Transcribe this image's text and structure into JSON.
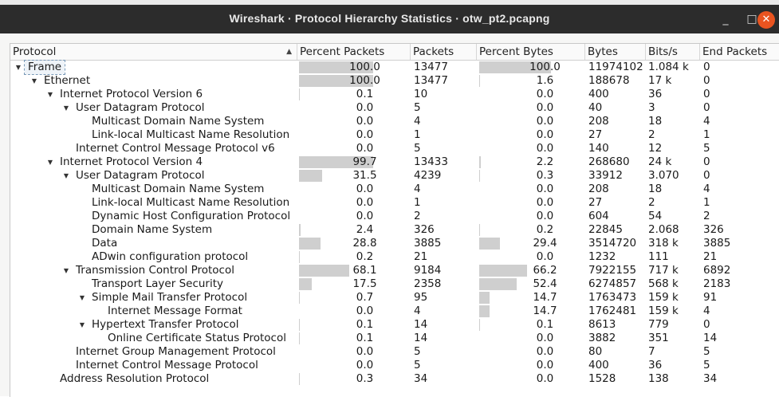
{
  "window": {
    "title": "Wireshark · Protocol Hierarchy Statistics · otw_pt2.pcapng",
    "minimize_glyph": "_",
    "maximize_glyph": "□",
    "close_glyph": "✕"
  },
  "columns": {
    "protocol": "Protocol",
    "percent_packets": "Percent Packets",
    "packets": "Packets",
    "percent_bytes": "Percent Bytes",
    "bytes": "Bytes",
    "bits_s": "Bits/s",
    "end_packets": "End Packets"
  },
  "rows": [
    {
      "name": "Frame",
      "depth": 0,
      "expander": "open",
      "pct_packets": "100.0",
      "pp_fill": 1.0,
      "packets": "13477",
      "pct_bytes": "100.0",
      "pb_fill": 1.0,
      "bytes": "11974102",
      "bits": "1.084 k",
      "end": "0",
      "selected": true
    },
    {
      "name": "Ethernet",
      "depth": 1,
      "expander": "open",
      "pct_packets": "100.0",
      "pp_fill": 1.0,
      "packets": "13477",
      "pct_bytes": "1.6",
      "pb_fill": 0.016,
      "bytes": "188678",
      "bits": "17 k",
      "end": "0"
    },
    {
      "name": "Internet Protocol Version 6",
      "depth": 2,
      "expander": "open",
      "pct_packets": "0.1",
      "pp_fill": 0.001,
      "packets": "10",
      "pct_bytes": "0.0",
      "pb_fill": 0,
      "bytes": "400",
      "bits": "36",
      "end": "0"
    },
    {
      "name": "User Datagram Protocol",
      "depth": 3,
      "expander": "open",
      "pct_packets": "0.0",
      "pp_fill": 0,
      "packets": "5",
      "pct_bytes": "0.0",
      "pb_fill": 0,
      "bytes": "40",
      "bits": "3",
      "end": "0"
    },
    {
      "name": "Multicast Domain Name System",
      "depth": 4,
      "expander": "none",
      "pct_packets": "0.0",
      "pp_fill": 0,
      "packets": "4",
      "pct_bytes": "0.0",
      "pb_fill": 0,
      "bytes": "208",
      "bits": "18",
      "end": "4"
    },
    {
      "name": "Link-local Multicast Name Resolution",
      "depth": 4,
      "expander": "none",
      "pct_packets": "0.0",
      "pp_fill": 0,
      "packets": "1",
      "pct_bytes": "0.0",
      "pb_fill": 0,
      "bytes": "27",
      "bits": "2",
      "end": "1"
    },
    {
      "name": "Internet Control Message Protocol v6",
      "depth": 3,
      "expander": "none",
      "pct_packets": "0.0",
      "pp_fill": 0,
      "packets": "5",
      "pct_bytes": "0.0",
      "pb_fill": 0,
      "bytes": "140",
      "bits": "12",
      "end": "5"
    },
    {
      "name": "Internet Protocol Version 4",
      "depth": 2,
      "expander": "open",
      "pct_packets": "99.7",
      "pp_fill": 0.997,
      "packets": "13433",
      "pct_bytes": "2.2",
      "pb_fill": 0.022,
      "bytes": "268680",
      "bits": "24 k",
      "end": "0"
    },
    {
      "name": "User Datagram Protocol",
      "depth": 3,
      "expander": "open",
      "pct_packets": "31.5",
      "pp_fill": 0.315,
      "packets": "4239",
      "pct_bytes": "0.3",
      "pb_fill": 0.003,
      "bytes": "33912",
      "bits": "3.070",
      "end": "0"
    },
    {
      "name": "Multicast Domain Name System",
      "depth": 4,
      "expander": "none",
      "pct_packets": "0.0",
      "pp_fill": 0,
      "packets": "4",
      "pct_bytes": "0.0",
      "pb_fill": 0,
      "bytes": "208",
      "bits": "18",
      "end": "4"
    },
    {
      "name": "Link-local Multicast Name Resolution",
      "depth": 4,
      "expander": "none",
      "pct_packets": "0.0",
      "pp_fill": 0,
      "packets": "1",
      "pct_bytes": "0.0",
      "pb_fill": 0,
      "bytes": "27",
      "bits": "2",
      "end": "1"
    },
    {
      "name": "Dynamic Host Configuration Protocol",
      "depth": 4,
      "expander": "none",
      "pct_packets": "0.0",
      "pp_fill": 0,
      "packets": "2",
      "pct_bytes": "0.0",
      "pb_fill": 0,
      "bytes": "604",
      "bits": "54",
      "end": "2"
    },
    {
      "name": "Domain Name System",
      "depth": 4,
      "expander": "none",
      "pct_packets": "2.4",
      "pp_fill": 0.024,
      "packets": "326",
      "pct_bytes": "0.2",
      "pb_fill": 0.002,
      "bytes": "22845",
      "bits": "2.068",
      "end": "326"
    },
    {
      "name": "Data",
      "depth": 4,
      "expander": "none",
      "pct_packets": "28.8",
      "pp_fill": 0.288,
      "packets": "3885",
      "pct_bytes": "29.4",
      "pb_fill": 0.294,
      "bytes": "3514720",
      "bits": "318 k",
      "end": "3885"
    },
    {
      "name": "ADwin configuration protocol",
      "depth": 4,
      "expander": "none",
      "pct_packets": "0.2",
      "pp_fill": 0.002,
      "packets": "21",
      "pct_bytes": "0.0",
      "pb_fill": 0,
      "bytes": "1232",
      "bits": "111",
      "end": "21"
    },
    {
      "name": "Transmission Control Protocol",
      "depth": 3,
      "expander": "open",
      "pct_packets": "68.1",
      "pp_fill": 0.681,
      "packets": "9184",
      "pct_bytes": "66.2",
      "pb_fill": 0.662,
      "bytes": "7922155",
      "bits": "717 k",
      "end": "6892"
    },
    {
      "name": "Transport Layer Security",
      "depth": 4,
      "expander": "none",
      "pct_packets": "17.5",
      "pp_fill": 0.175,
      "packets": "2358",
      "pct_bytes": "52.4",
      "pb_fill": 0.524,
      "bytes": "6274857",
      "bits": "568 k",
      "end": "2183"
    },
    {
      "name": "Simple Mail Transfer Protocol",
      "depth": 4,
      "expander": "open",
      "pct_packets": "0.7",
      "pp_fill": 0.007,
      "packets": "95",
      "pct_bytes": "14.7",
      "pb_fill": 0.147,
      "bytes": "1763473",
      "bits": "159 k",
      "end": "91"
    },
    {
      "name": "Internet Message Format",
      "depth": 5,
      "expander": "none",
      "pct_packets": "0.0",
      "pp_fill": 0,
      "packets": "4",
      "pct_bytes": "14.7",
      "pb_fill": 0.147,
      "bytes": "1762481",
      "bits": "159 k",
      "end": "4"
    },
    {
      "name": "Hypertext Transfer Protocol",
      "depth": 4,
      "expander": "open",
      "pct_packets": "0.1",
      "pp_fill": 0.001,
      "packets": "14",
      "pct_bytes": "0.1",
      "pb_fill": 0.001,
      "bytes": "8613",
      "bits": "779",
      "end": "0"
    },
    {
      "name": "Online Certificate Status Protocol",
      "depth": 5,
      "expander": "none",
      "pct_packets": "0.1",
      "pp_fill": 0.001,
      "packets": "14",
      "pct_bytes": "0.0",
      "pb_fill": 0,
      "bytes": "3882",
      "bits": "351",
      "end": "14"
    },
    {
      "name": "Internet Group Management Protocol",
      "depth": 3,
      "expander": "none",
      "pct_packets": "0.0",
      "pp_fill": 0,
      "packets": "5",
      "pct_bytes": "0.0",
      "pb_fill": 0,
      "bytes": "80",
      "bits": "7",
      "end": "5"
    },
    {
      "name": "Internet Control Message Protocol",
      "depth": 3,
      "expander": "none",
      "pct_packets": "0.0",
      "pp_fill": 0,
      "packets": "5",
      "pct_bytes": "0.0",
      "pb_fill": 0,
      "bytes": "400",
      "bits": "36",
      "end": "5"
    },
    {
      "name": "Address Resolution Protocol",
      "depth": 2,
      "expander": "none",
      "pct_packets": "0.3",
      "pp_fill": 0.003,
      "packets": "34",
      "pct_bytes": "0.0",
      "pb_fill": 0,
      "bytes": "1528",
      "bits": "138",
      "end": "34"
    }
  ]
}
